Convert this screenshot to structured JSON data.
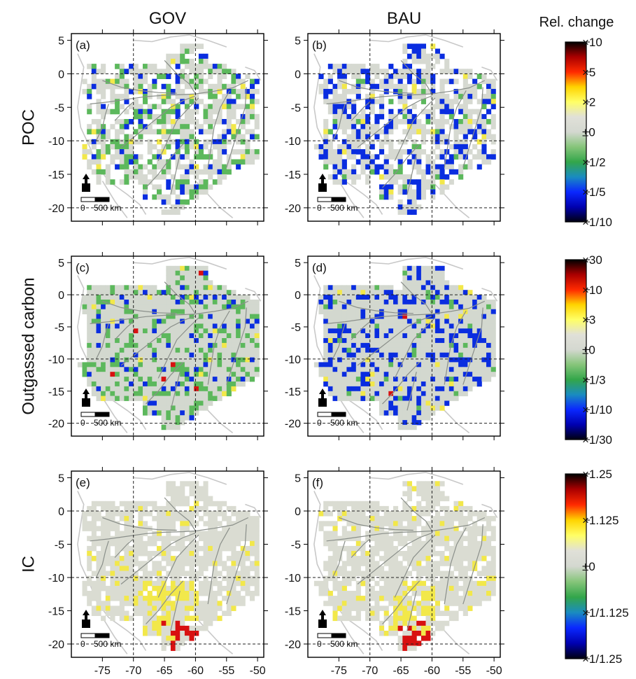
{
  "figure": {
    "column_titles": [
      "GOV",
      "BAU"
    ],
    "row_titles": [
      "POC",
      "Outgassed carbon",
      "IC"
    ],
    "colorbar_title": "Rel. change",
    "x_ticks": [
      "-75",
      "-70",
      "-65",
      "-60",
      "-55",
      "-50"
    ],
    "y_ticks": [
      "5",
      "0",
      "-5",
      "-10",
      "-15",
      "-20"
    ],
    "x_range": [
      -80,
      -49
    ],
    "y_range": [
      -22,
      6
    ],
    "dashed_grid_lon": [
      -70,
      -60
    ],
    "dashed_grid_lat": [
      0,
      -10,
      -20
    ],
    "scale_bar": {
      "zero": "0",
      "label": "500 km"
    },
    "panel_labels": [
      "(a)",
      "(b)",
      "(c)",
      "(d)",
      "(e)",
      "(f)"
    ],
    "colorbars": [
      {
        "ticks": [
          "×10",
          "×5",
          "×2",
          "±0",
          "×1/2",
          "×1/5",
          "×1/10"
        ]
      },
      {
        "ticks": [
          "×30",
          "×10",
          "×3",
          "±0",
          "×1/3",
          "×1/10",
          "×1/30"
        ]
      },
      {
        "ticks": [
          "×1.25",
          "×1.125",
          "±0",
          "×1/1.125",
          "×1/1.25"
        ]
      }
    ]
  },
  "colors": {
    "basin_fill": "#d3d8cf",
    "river": "#8a8f8a",
    "outline": "#c8c8c8",
    "decrease_mid": "#5cb85c",
    "decrease_strong": "#0a2de0",
    "increase_mid": "#f2e84a",
    "increase_strong": "#d81010"
  }
}
